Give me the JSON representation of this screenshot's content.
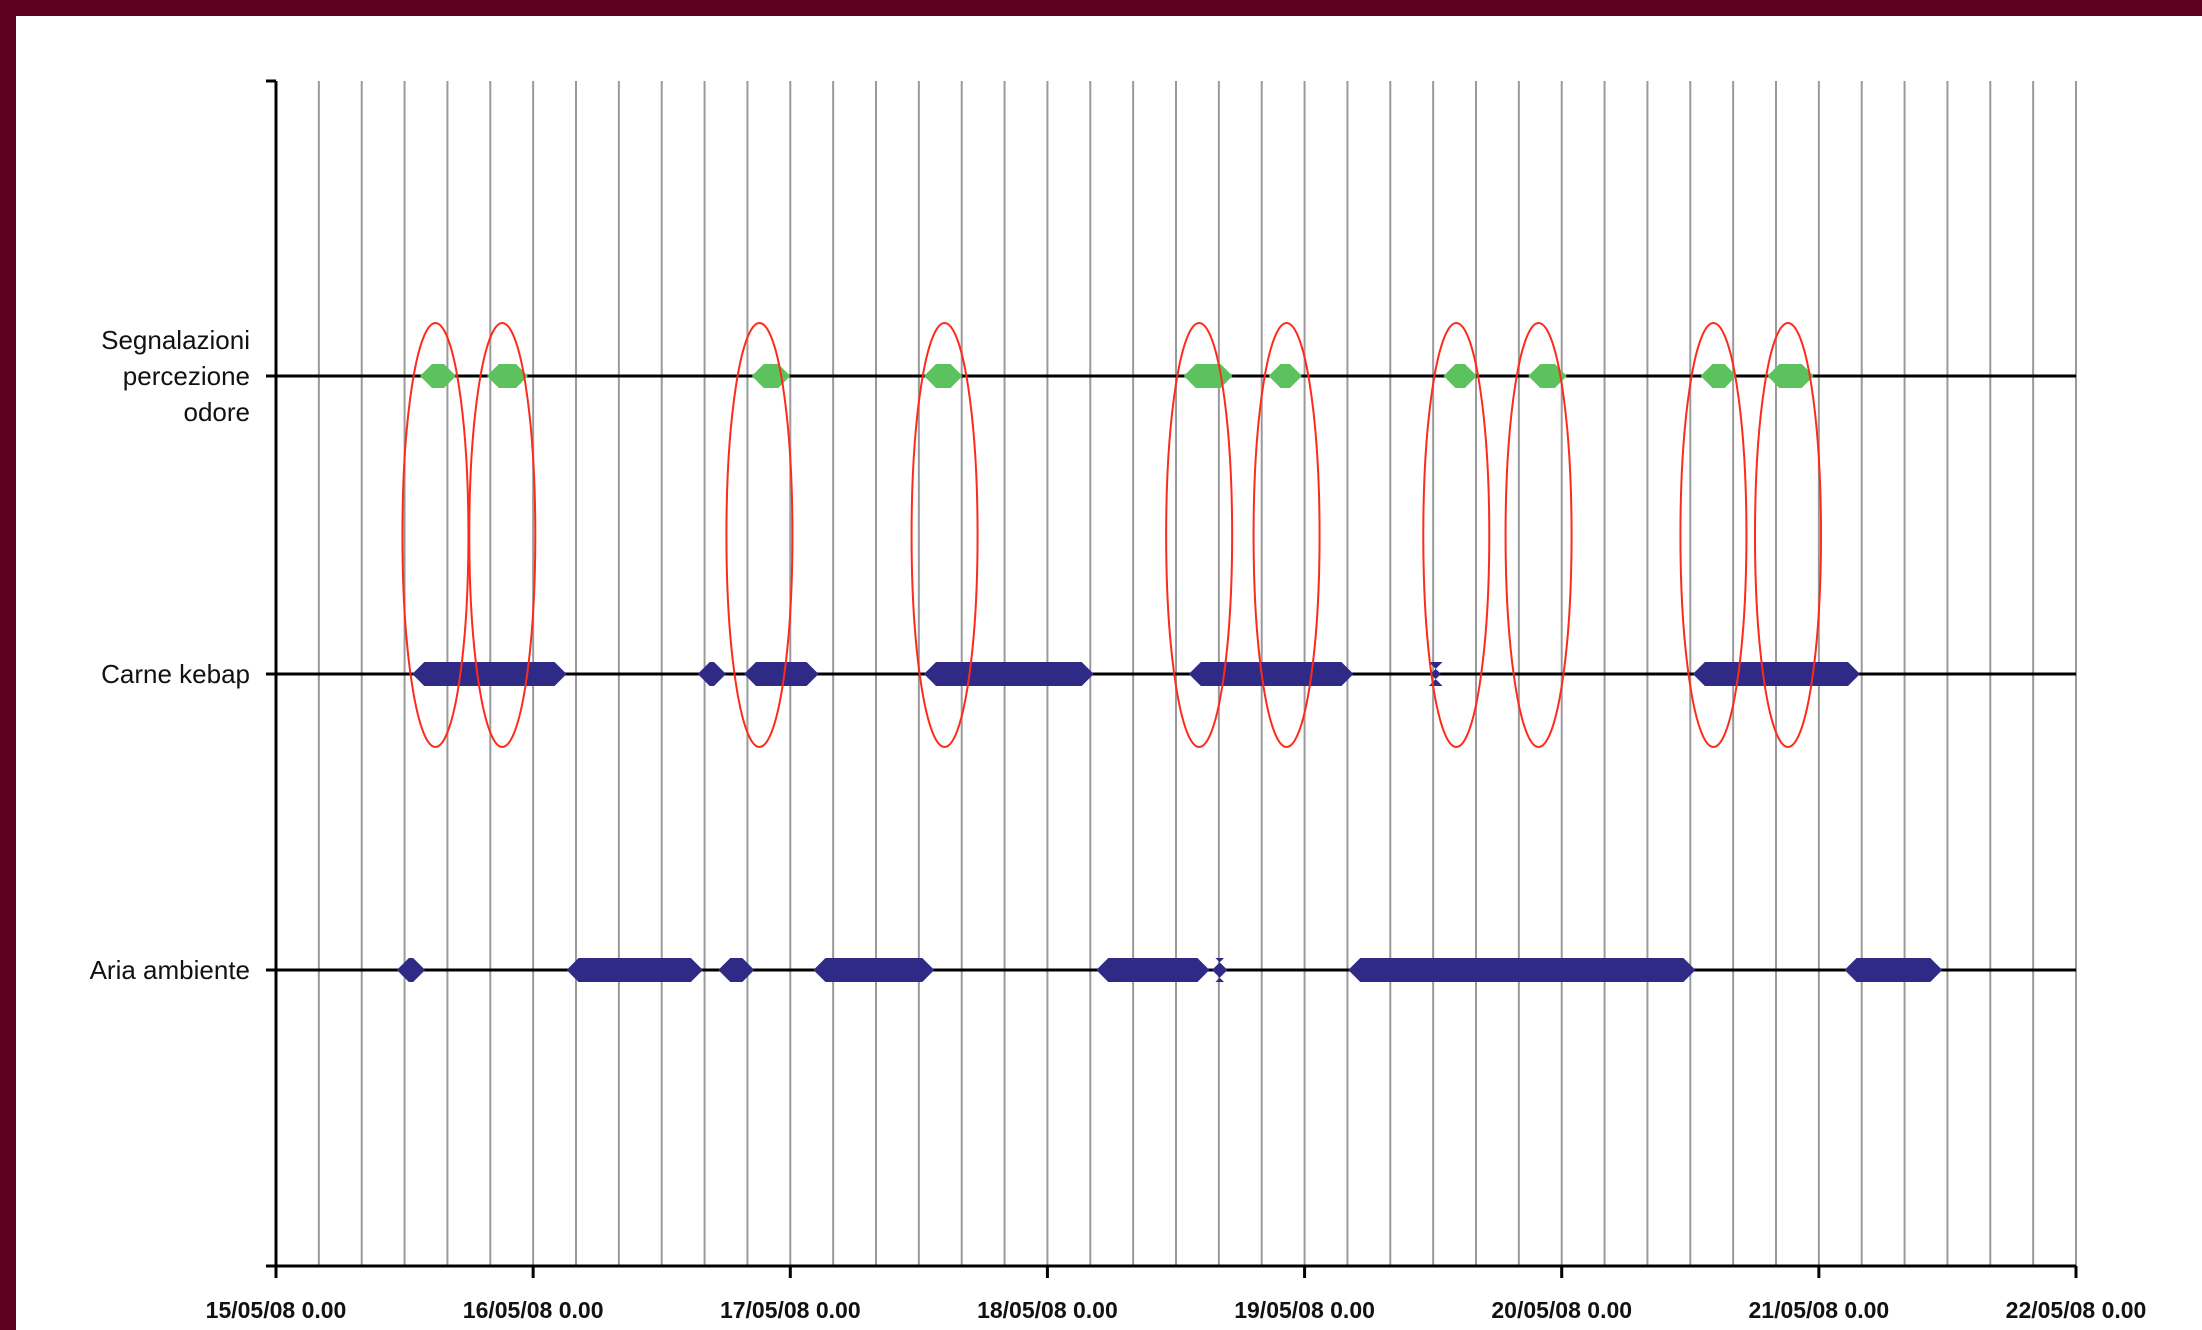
{
  "chart_data": {
    "type": "timeline",
    "title": "",
    "xlabel": "",
    "ylabel": "",
    "x_range": [
      "15/05/08 0.00",
      "22/05/08 0.00"
    ],
    "x_ticks": [
      "15/05/08 0.00",
      "16/05/08 0.00",
      "17/05/08 0.00",
      "18/05/08 0.00",
      "19/05/08 0.00",
      "20/05/08 0.00",
      "21/05/08 0.00",
      "22/05/08 0.00"
    ],
    "gridlines": "vertical, every 4 hours",
    "categories": [
      {
        "label_lines": [
          "Segnalazioni",
          "percezione",
          "odore"
        ],
        "row": 1
      },
      {
        "label_lines": [
          "Carne kebap"
        ],
        "row": 2
      },
      {
        "label_lines": [
          "Aria ambiente"
        ],
        "row": 3
      }
    ],
    "series": [
      {
        "color": "#5cc25e",
        "row": 1,
        "intervals_days": [
          [
            0.56,
            0.7
          ],
          [
            0.82,
            0.98
          ],
          [
            1.85,
            2.0
          ],
          [
            2.52,
            2.67
          ],
          [
            3.53,
            3.72
          ],
          [
            3.86,
            3.99
          ],
          [
            4.54,
            4.67
          ],
          [
            4.87,
            5.02
          ],
          [
            5.54,
            5.68
          ],
          [
            5.8,
            5.98
          ]
        ]
      },
      {
        "color": "#2e2a86",
        "row": 2,
        "intervals_days": [
          [
            0.53,
            1.13
          ],
          [
            1.64,
            1.75
          ],
          [
            1.82,
            2.11
          ],
          [
            2.52,
            3.18
          ],
          [
            3.55,
            4.19
          ],
          [
            4.49,
            4.53
          ],
          [
            5.51,
            6.16
          ]
        ]
      },
      {
        "color": "#2e2a86",
        "row": 3,
        "intervals_days": [
          [
            0.47,
            0.58
          ],
          [
            1.13,
            1.66
          ],
          [
            1.72,
            1.86
          ],
          [
            2.09,
            2.56
          ],
          [
            3.19,
            3.63
          ],
          [
            3.64,
            3.7
          ],
          [
            4.17,
            5.52
          ],
          [
            6.1,
            6.48
          ]
        ]
      }
    ],
    "highlight_ellipses_color": "#ff2a1a",
    "highlight_ellipse_centers_days": [
      0.62,
      0.88,
      1.88,
      2.6,
      3.59,
      3.93,
      4.59,
      4.91,
      5.59,
      5.88
    ]
  }
}
